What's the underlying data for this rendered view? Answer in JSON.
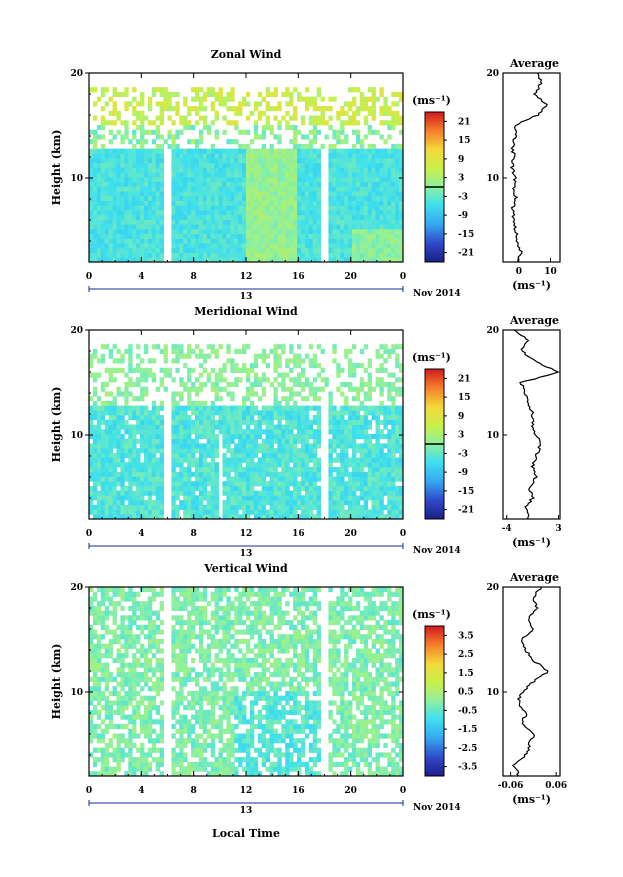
{
  "chart_data": [
    {
      "type": "heatmap",
      "title": "Zonal Wind",
      "ylabel": "Height (km)",
      "xlabel": "",
      "date_label": "Nov 2014",
      "day_label": "13",
      "x_ticks": [
        "0",
        "4",
        "8",
        "12",
        "16",
        "20",
        "0"
      ],
      "y_ticks": [
        "10",
        "20"
      ],
      "ylim": [
        2,
        20
      ],
      "xlim": [
        0,
        24
      ],
      "colorbar_unit": "(ms⁻¹)",
      "colorbar_ticks": [
        "21",
        "15",
        "9",
        "3",
        "-3",
        "-9",
        "-15",
        "-21"
      ],
      "colorbar_range": [
        -24,
        24
      ],
      "avg_panel": {
        "title": "Average",
        "y_ticks": [
          "10",
          "20"
        ],
        "x_ticks": [
          "0",
          "10"
        ],
        "xlim": [
          -5,
          13
        ],
        "xlabel": "(ms⁻¹)",
        "heights": [
          2,
          3,
          4,
          5,
          6,
          7,
          8,
          9,
          10,
          11,
          12,
          13,
          14,
          15,
          16,
          17,
          18,
          19,
          20
        ],
        "values": [
          0,
          0.5,
          -0.5,
          -1,
          -1.5,
          -2,
          -1,
          -1.5,
          -1,
          -2,
          -1.5,
          -2,
          -1,
          -1.5,
          6,
          9,
          5,
          7,
          6
        ]
      },
      "gaps": [
        {
          "time": 6,
          "from": 2,
          "to": 13
        },
        {
          "time": 18,
          "from": 2,
          "to": 13
        }
      ]
    },
    {
      "type": "heatmap",
      "title": "Meridional Wind",
      "ylabel": "Height (km)",
      "xlabel": "",
      "date_label": "Nov 2014",
      "day_label": "13",
      "x_ticks": [
        "0",
        "4",
        "8",
        "12",
        "16",
        "20",
        "0"
      ],
      "y_ticks": [
        "10",
        "20"
      ],
      "ylim": [
        2,
        20
      ],
      "xlim": [
        0,
        24
      ],
      "colorbar_unit": "(ms⁻¹)",
      "colorbar_ticks": [
        "21",
        "15",
        "9",
        "3",
        "-3",
        "-9",
        "-15",
        "-21"
      ],
      "colorbar_range": [
        -24,
        24
      ],
      "avg_panel": {
        "title": "Average",
        "y_ticks": [
          "10",
          "20"
        ],
        "x_ticks": [
          "-4",
          "3"
        ],
        "xlim": [
          -4.5,
          3.2
        ],
        "xlabel": "(ms⁻¹)",
        "heights": [
          2,
          3,
          4,
          5,
          6,
          7,
          8,
          9,
          10,
          11,
          12,
          13,
          14,
          15,
          16,
          17,
          18,
          19,
          20
        ],
        "values": [
          -1,
          -1.5,
          -0.5,
          -1,
          0,
          -0.5,
          0,
          0.5,
          0,
          -0.5,
          -0.5,
          -1,
          -1.5,
          -2,
          3,
          0,
          -2,
          -1,
          -3
        ]
      },
      "gaps": [
        {
          "time": 6,
          "from": 2,
          "to": 14
        },
        {
          "time": 18,
          "from": 2,
          "to": 14
        },
        {
          "time": 10,
          "from": 2,
          "to": 10
        }
      ]
    },
    {
      "type": "heatmap",
      "title": "Vertical Wind",
      "ylabel": "Height (km)",
      "xlabel": "Local Time",
      "date_label": "Nov 2014",
      "day_label": "13",
      "x_ticks": [
        "0",
        "4",
        "8",
        "12",
        "16",
        "20",
        "0"
      ],
      "y_ticks": [
        "10",
        "20"
      ],
      "ylim": [
        2,
        20
      ],
      "xlim": [
        0,
        24
      ],
      "colorbar_unit": "(ms⁻¹)",
      "colorbar_ticks": [
        "3.5",
        "2.5",
        "1.5",
        "0.5",
        "-0.5",
        "-1.5",
        "-2.5",
        "-3.5"
      ],
      "colorbar_range": [
        -4,
        4
      ],
      "avg_panel": {
        "title": "Average",
        "y_ticks": [
          "10",
          "20"
        ],
        "x_ticks": [
          "-0.06",
          "0.06"
        ],
        "xlim": [
          -0.08,
          0.07
        ],
        "xlabel": "(ms⁻¹)",
        "heights": [
          2,
          3,
          4,
          5,
          6,
          7,
          8,
          9,
          10,
          11,
          12,
          13,
          14,
          15,
          16,
          17,
          18,
          19,
          20
        ],
        "values": [
          -0.04,
          -0.05,
          -0.02,
          -0.01,
          0.0,
          -0.03,
          -0.02,
          -0.04,
          -0.03,
          0.0,
          0.04,
          0.0,
          -0.02,
          -0.03,
          0.0,
          -0.01,
          0.01,
          0.0,
          0.02
        ]
      },
      "gaps": [
        {
          "time": 6,
          "from": 2,
          "to": 20
        },
        {
          "time": 18,
          "from": 2,
          "to": 20
        }
      ]
    }
  ]
}
